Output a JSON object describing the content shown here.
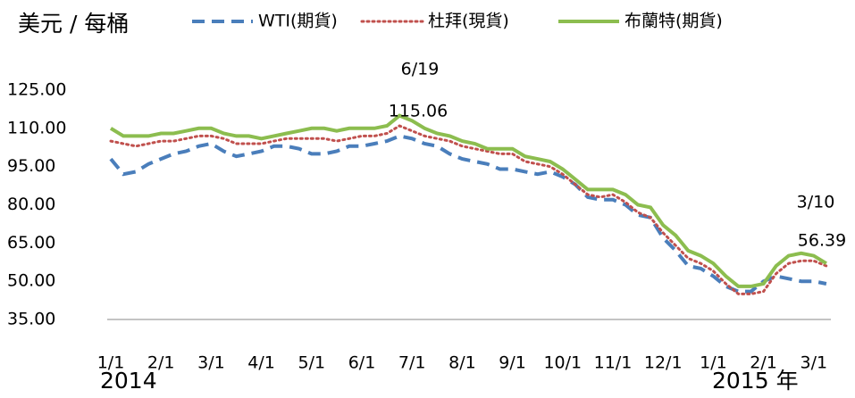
{
  "chart_data": {
    "type": "line",
    "title": "美元 / 每桶",
    "categories": [
      "1/1",
      null,
      null,
      null,
      "2/1",
      null,
      null,
      null,
      "3/1",
      null,
      null,
      null,
      "4/1",
      null,
      null,
      null,
      "5/1",
      null,
      null,
      null,
      "6/1",
      null,
      null,
      null,
      "7/1",
      null,
      null,
      null,
      "8/1",
      null,
      null,
      null,
      "9/1",
      null,
      null,
      null,
      "10/1",
      null,
      null,
      null,
      "11/1",
      null,
      null,
      null,
      "12/1",
      null,
      null,
      null,
      "1/1",
      null,
      null,
      null,
      "2/1",
      null,
      null,
      null,
      "3/1",
      null
    ],
    "year_labels": [
      "2014",
      "2015 年"
    ],
    "series": [
      {
        "name": "WTI(期貨)",
        "color": "#4a7ebb",
        "style": "dashed",
        "values": [
          98,
          92,
          93,
          96,
          98,
          100,
          101,
          103,
          104,
          101,
          99,
          100,
          101,
          103,
          103,
          102,
          100,
          100,
          101,
          103,
          103,
          104,
          105,
          107,
          106,
          104,
          103,
          100,
          98,
          97,
          96,
          94,
          94,
          93,
          92,
          93,
          91,
          88,
          83,
          82,
          82,
          80,
          76,
          75,
          67,
          62,
          56,
          55,
          52,
          48,
          46,
          46,
          50,
          52,
          51,
          50,
          50,
          49
        ]
      },
      {
        "name": "杜拜(現貨)",
        "color": "#c0504d",
        "style": "dotted",
        "values": [
          105,
          104,
          103,
          104,
          105,
          105,
          106,
          107,
          107,
          106,
          104,
          104,
          104,
          105,
          106,
          106,
          106,
          106,
          105,
          106,
          107,
          107,
          108,
          111,
          109,
          107,
          106,
          105,
          103,
          102,
          101,
          100,
          100,
          97,
          96,
          95,
          92,
          88,
          84,
          83,
          84,
          81,
          77,
          75,
          69,
          64,
          59,
          57,
          54,
          49,
          45,
          45,
          46,
          53,
          57,
          58,
          58,
          56
        ]
      },
      {
        "name": "布蘭特(期貨)",
        "color": "#8cbd4f",
        "style": "solid",
        "values": [
          110,
          107,
          107,
          107,
          108,
          108,
          109,
          110,
          110,
          108,
          107,
          107,
          106,
          107,
          108,
          109,
          110,
          110,
          109,
          110,
          110,
          110,
          111,
          115,
          113,
          110,
          108,
          107,
          105,
          104,
          102,
          102,
          102,
          99,
          98,
          97,
          94,
          90,
          86,
          86,
          86,
          84,
          80,
          79,
          72,
          68,
          62,
          60,
          57,
          52,
          48,
          48,
          49,
          56,
          60,
          61,
          60,
          57
        ]
      }
    ],
    "ylim": [
      35,
      125
    ],
    "yticks": [
      {
        "value": 35,
        "label": "35.00"
      },
      {
        "value": 50,
        "label": "50.00"
      },
      {
        "value": 65,
        "label": "65.00"
      },
      {
        "value": 80,
        "label": "80.00"
      },
      {
        "value": 95,
        "label": "95.00"
      },
      {
        "value": 110,
        "label": "110.00"
      },
      {
        "value": 125,
        "label": "125.00"
      }
    ],
    "annotations": [
      {
        "date": "6/19",
        "value": 115.06,
        "label": "115.06"
      },
      {
        "date": "3/10",
        "value": 56.39,
        "label": "56.39"
      }
    ]
  }
}
